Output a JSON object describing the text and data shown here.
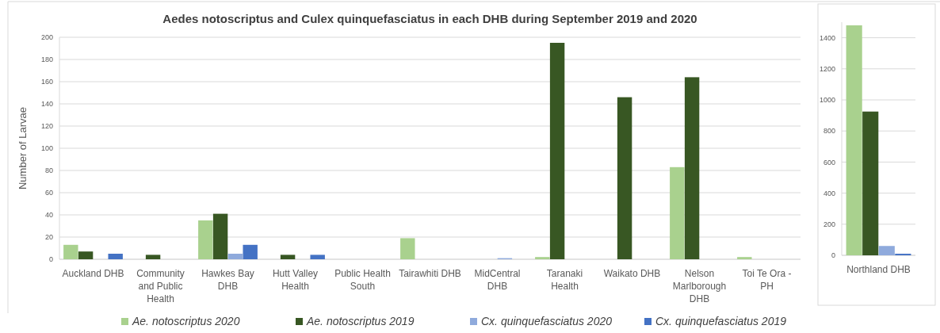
{
  "chart_data": [
    {
      "type": "bar",
      "title": "Aedes notoscriptus and Culex quinquefasciatus in each DHB during September 2019 and 2020",
      "categories": [
        "Auckland DHB",
        "Community and Public Health",
        "Hawkes Bay DHB",
        "Hutt Valley Health",
        "Public Health South",
        "Tairawhiti DHB",
        "MidCentral DHB",
        "Taranaki Health",
        "Waikato DHB",
        "Nelson Marlborough DHB",
        "Toi Te Ora - PH"
      ],
      "ylabel": "Number of Larvae",
      "ylim": [
        0,
        200
      ],
      "yticks": [
        0,
        20,
        40,
        60,
        80,
        100,
        120,
        140,
        160,
        180,
        200
      ],
      "grid": "y",
      "legend": "bottom",
      "series": [
        {
          "name": "Ae. notoscriptus 2020",
          "color": "#a9d18e",
          "values": [
            13,
            0,
            35,
            0,
            0,
            19,
            0,
            2,
            0,
            83,
            2
          ]
        },
        {
          "name": "Ae. notoscriptus 2019",
          "color": "#385723",
          "values": [
            7,
            4,
            41,
            4,
            0,
            0,
            0,
            195,
            146,
            164,
            0
          ]
        },
        {
          "name": "Cx. quinquefasciatus 2020",
          "color": "#8faadc",
          "values": [
            0,
            0,
            5,
            0,
            0,
            0,
            1,
            0,
            0,
            0,
            0
          ]
        },
        {
          "name": "Cx. quinquefasciatus 2019",
          "color": "#4472c4",
          "values": [
            5,
            0,
            13,
            4,
            0,
            0,
            0,
            0,
            0,
            0,
            0
          ]
        }
      ]
    },
    {
      "type": "bar",
      "categories": [
        "Northland DHB"
      ],
      "ylim": [
        0,
        1500
      ],
      "yticks": [
        0,
        200,
        400,
        600,
        800,
        1000,
        1200,
        1400
      ],
      "grid": "y",
      "series": [
        {
          "color": "#a9d18e",
          "values": [
            1480
          ]
        },
        {
          "color": "#385723",
          "values": [
            925
          ]
        },
        {
          "color": "#8faadc",
          "values": [
            60
          ]
        },
        {
          "color": "#4472c4",
          "values": [
            10
          ]
        }
      ]
    }
  ]
}
